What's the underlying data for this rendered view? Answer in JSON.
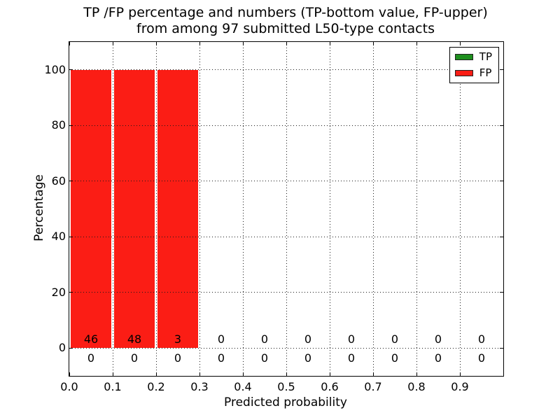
{
  "chart_data": {
    "type": "bar",
    "title": "TP /FP percentage and numbers (TP-bottom value, FP-upper) from among 97 submitted L50-type contacts",
    "title_line1": "TP /FP percentage and numbers (TP-bottom value, FP-upper)",
    "title_line2": "from among 97 submitted L50-type contacts",
    "xlabel": "Predicted probability",
    "ylabel": "Percentage",
    "xlim": [
      0.0,
      1.0
    ],
    "ylim": [
      -10,
      110
    ],
    "xticks": [
      0.0,
      0.1,
      0.2,
      0.3,
      0.4,
      0.5,
      0.6,
      0.7,
      0.8,
      0.9
    ],
    "yticks": [
      0,
      20,
      40,
      60,
      80,
      100
    ],
    "grid": true,
    "grid_style": "dotted",
    "legend_position": "upper right",
    "submitted_total": 97,
    "bin_width": 0.1,
    "bin_starts": [
      0.0,
      0.1,
      0.2,
      0.3,
      0.4,
      0.5,
      0.6,
      0.7,
      0.8,
      0.9
    ],
    "series": [
      {
        "name": "TP",
        "color": "#1e8f1e",
        "percent": [
          0,
          0,
          0,
          0,
          0,
          0,
          0,
          0,
          0,
          0
        ],
        "counts": [
          0,
          0,
          0,
          0,
          0,
          0,
          0,
          0,
          0,
          0
        ],
        "count_row": "lower"
      },
      {
        "name": "FP",
        "color": "#fb1d15",
        "percent": [
          100,
          100,
          100,
          0,
          0,
          0,
          0,
          0,
          0,
          0
        ],
        "counts": [
          46,
          48,
          3,
          0,
          0,
          0,
          0,
          0,
          0,
          0
        ],
        "count_row": "upper"
      }
    ]
  }
}
